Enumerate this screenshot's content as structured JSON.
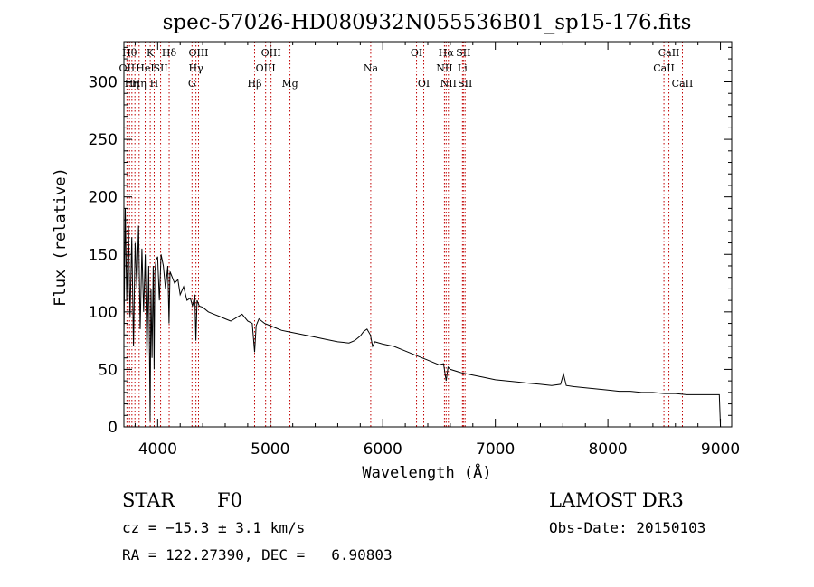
{
  "chart_data": {
    "type": "line",
    "title": "spec-57026-HD080932N055536B01_sp15-176.fits",
    "xlabel": "Wavelength (Å)",
    "ylabel": "Flux (relative)",
    "xlim": [
      3700,
      9100
    ],
    "ylim": [
      0,
      335
    ],
    "x_ticks": [
      4000,
      5000,
      6000,
      7000,
      8000,
      9000
    ],
    "x_tick_labels": [
      "4000",
      "5000",
      "6000",
      "7000",
      "8000",
      "9000"
    ],
    "y_ticks": [
      0,
      50,
      100,
      150,
      200,
      250,
      300
    ],
    "y_tick_labels": [
      "0",
      "50",
      "100",
      "150",
      "200",
      "250",
      "300"
    ],
    "series": [
      {
        "name": "flux",
        "x": [
          3700,
          3712,
          3725,
          3740,
          3755,
          3770,
          3785,
          3800,
          3815,
          3830,
          3845,
          3860,
          3875,
          3890,
          3905,
          3920,
          3933,
          3940,
          3950,
          3960,
          3968,
          3975,
          3985,
          4000,
          4015,
          4030,
          4050,
          4070,
          4090,
          4101,
          4110,
          4130,
          4150,
          4180,
          4200,
          4230,
          4260,
          4290,
          4310,
          4330,
          4340,
          4350,
          4370,
          4400,
          4450,
          4500,
          4550,
          4600,
          4650,
          4700,
          4750,
          4800,
          4840,
          4861,
          4875,
          4900,
          4950,
          5000,
          5050,
          5100,
          5150,
          5200,
          5300,
          5400,
          5500,
          5600,
          5700,
          5750,
          5800,
          5830,
          5860,
          5890,
          5910,
          5930,
          6000,
          6100,
          6200,
          6300,
          6400,
          6500,
          6540,
          6563,
          6580,
          6600,
          6700,
          6800,
          6900,
          7000,
          7100,
          7200,
          7300,
          7400,
          7500,
          7580,
          7605,
          7630,
          7700,
          7800,
          7900,
          8000,
          8100,
          8200,
          8300,
          8400,
          8500,
          8600,
          8700,
          8800,
          8900,
          8990,
          9000
        ],
        "values": [
          75,
          190,
          110,
          175,
          95,
          165,
          70,
          160,
          120,
          175,
          85,
          155,
          100,
          150,
          60,
          140,
          5,
          120,
          60,
          140,
          50,
          135,
          145,
          148,
          110,
          150,
          140,
          120,
          140,
          90,
          135,
          130,
          125,
          128,
          115,
          122,
          110,
          112,
          105,
          115,
          75,
          110,
          105,
          104,
          100,
          98,
          96,
          94,
          92,
          95,
          98,
          92,
          90,
          65,
          88,
          94,
          90,
          88,
          86,
          84,
          83,
          82,
          80,
          78,
          76,
          74,
          73,
          75,
          79,
          83,
          85,
          80,
          70,
          74,
          72,
          70,
          66,
          62,
          58,
          54,
          55,
          40,
          52,
          50,
          47,
          45,
          43,
          41,
          40,
          39,
          38,
          37,
          36,
          37,
          46,
          36,
          35,
          34,
          33,
          32,
          31,
          31,
          30,
          30,
          29,
          29,
          28,
          28,
          28,
          28,
          0
        ]
      }
    ],
    "line_markers": [
      {
        "wavelength": 3727,
        "label": "OII",
        "row": 2
      },
      {
        "wavelength": 3750,
        "label": "Hθ",
        "row": 1
      },
      {
        "wavelength": 3771,
        "label": "Hη",
        "row": 3
      },
      {
        "wavelength": 3798,
        "label": "",
        "row": 0
      },
      {
        "wavelength": 3835,
        "label": "Hη",
        "row": 3
      },
      {
        "wavelength": 3889,
        "label": "HeI",
        "row": 2
      },
      {
        "wavelength": 3934,
        "label": "K",
        "row": 1
      },
      {
        "wavelength": 3969,
        "label": "H",
        "row": 3
      },
      {
        "wavelength": 4026,
        "label": "SII",
        "row": 2
      },
      {
        "wavelength": 4102,
        "label": "Hδ",
        "row": 1
      },
      {
        "wavelength": 4305,
        "label": "G",
        "row": 3
      },
      {
        "wavelength": 4340,
        "label": "Hγ",
        "row": 2
      },
      {
        "wavelength": 4363,
        "label": "OIII",
        "row": 1
      },
      {
        "wavelength": 4861,
        "label": "Hβ",
        "row": 3
      },
      {
        "wavelength": 4959,
        "label": "OIII",
        "row": 2
      },
      {
        "wavelength": 5007,
        "label": "OIII",
        "row": 1
      },
      {
        "wavelength": 5175,
        "label": "Mg",
        "row": 3
      },
      {
        "wavelength": 5893,
        "label": "Na",
        "row": 2
      },
      {
        "wavelength": 6300,
        "label": "OI",
        "row": 1
      },
      {
        "wavelength": 6364,
        "label": "OI",
        "row": 3
      },
      {
        "wavelength": 6548,
        "label": "NII",
        "row": 2
      },
      {
        "wavelength": 6563,
        "label": "Hα",
        "row": 1
      },
      {
        "wavelength": 6583,
        "label": "NII",
        "row": 3
      },
      {
        "wavelength": 6708,
        "label": "Li",
        "row": 2
      },
      {
        "wavelength": 6716,
        "label": "SII",
        "row": 1
      },
      {
        "wavelength": 6731,
        "label": "SII",
        "row": 3
      },
      {
        "wavelength": 8498,
        "label": "CaII",
        "row": 2
      },
      {
        "wavelength": 8542,
        "label": "CaII",
        "row": 1
      },
      {
        "wavelength": 8662,
        "label": "CaII",
        "row": 3
      }
    ]
  },
  "info": {
    "object_class": "STAR",
    "subclass": "F0",
    "survey": "LAMOST DR3",
    "cz": "cz = −15.3 ± 3.1 km/s",
    "obs_date": "Obs-Date: 20150103",
    "coords": "RA = 122.27390, DEC =   6.90803"
  }
}
